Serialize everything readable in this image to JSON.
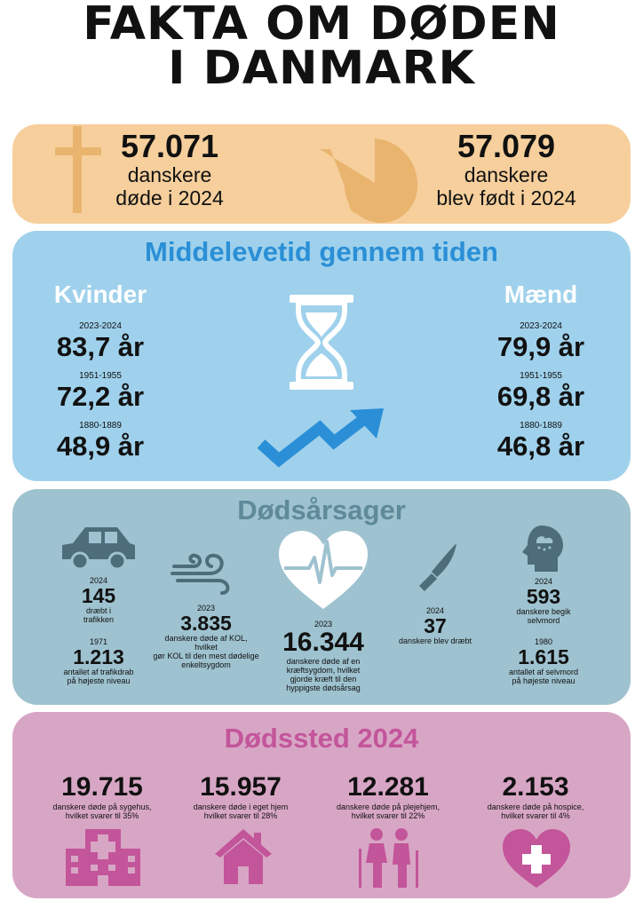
{
  "title_line1": "FAKTA OM DØDEN",
  "title_line2": "I DANMARK",
  "deaths": {
    "value": "57.071",
    "line1": "danskere",
    "line2": "døde i 2024",
    "icon": "cross-icon"
  },
  "births": {
    "value": "57.079",
    "line1": "danskere",
    "line2": "blev født i 2024",
    "icon": "baby-carriage-icon"
  },
  "life": {
    "heading": "Middelevetid gennem tiden",
    "women": {
      "label": "Kvinder",
      "rows": [
        {
          "period": "2023-2024",
          "value": "83,7 år"
        },
        {
          "period": "1951-1955",
          "value": "72,2 år"
        },
        {
          "period": "1880-1889",
          "value": "48,9 år"
        }
      ]
    },
    "men": {
      "label": "Mænd",
      "rows": [
        {
          "period": "2023-2024",
          "value": "79,9 år"
        },
        {
          "period": "1951-1955",
          "value": "69,8 år"
        },
        {
          "period": "1880-1889",
          "value": "46,8 år"
        }
      ]
    },
    "icons": [
      "hourglass-icon",
      "trend-up-arrow-icon"
    ]
  },
  "causes": {
    "heading": "Dødsårsager",
    "traffic": {
      "year": "2024",
      "value": "145",
      "desc1": "dræbt i",
      "desc2": "trafikken",
      "year2": "1971",
      "value2": "1.213",
      "desc3": "antallet af trafikdrab",
      "desc4": "på højeste niveau"
    },
    "kol": {
      "year": "2023",
      "value": "3.835",
      "desc1": "danskere døde af KOL, hvilket",
      "desc2": "gør KOL til den mest dødelige",
      "desc3": "enkeltsygdom"
    },
    "cancer": {
      "year": "2023",
      "value": "16.344",
      "desc1": "danskere døde af en",
      "desc2": "kræftsygdom, hvilket",
      "desc3": "gjorde kræft til den",
      "desc4": "hyppigste dødsårsag"
    },
    "killed": {
      "year": "2024",
      "value": "37",
      "desc1": "danskere blev dræbt"
    },
    "suicide": {
      "year": "2024",
      "value": "593",
      "desc1": "danskere begik",
      "desc2": "selvmord",
      "year2": "1980",
      "value2": "1.615",
      "desc3": "antallet af selvmord",
      "desc4": "på højeste niveau"
    }
  },
  "place": {
    "heading": "Dødssted 2024",
    "items": [
      {
        "value": "19.715",
        "desc1": "danskere døde på sygehus,",
        "desc2": "hvilket svarer til 35%",
        "icon": "hospital-icon"
      },
      {
        "value": "15.957",
        "desc1": "danskere døde i eget hjem",
        "desc2": "hvilket svarer til 28%",
        "icon": "house-icon"
      },
      {
        "value": "12.281",
        "desc1": "danskere døde på plejehjem,",
        "desc2": "hvilket svarer til 22%",
        "icon": "elderly-couple-icon"
      },
      {
        "value": "2.153",
        "desc1": "danskere døde på hospice,",
        "desc2": "hvilket svarer til 4%",
        "icon": "heart-plus-icon"
      }
    ]
  },
  "colors": {
    "births_panel": "#f6cf9c",
    "life_panel": "#9fd1ec",
    "causes_panel": "#9ec2cf",
    "place_panel": "#d8a6c5",
    "life_heading": "#2a8fd6",
    "causes_heading": "#5e8a9a",
    "place_heading": "#c3559a"
  }
}
